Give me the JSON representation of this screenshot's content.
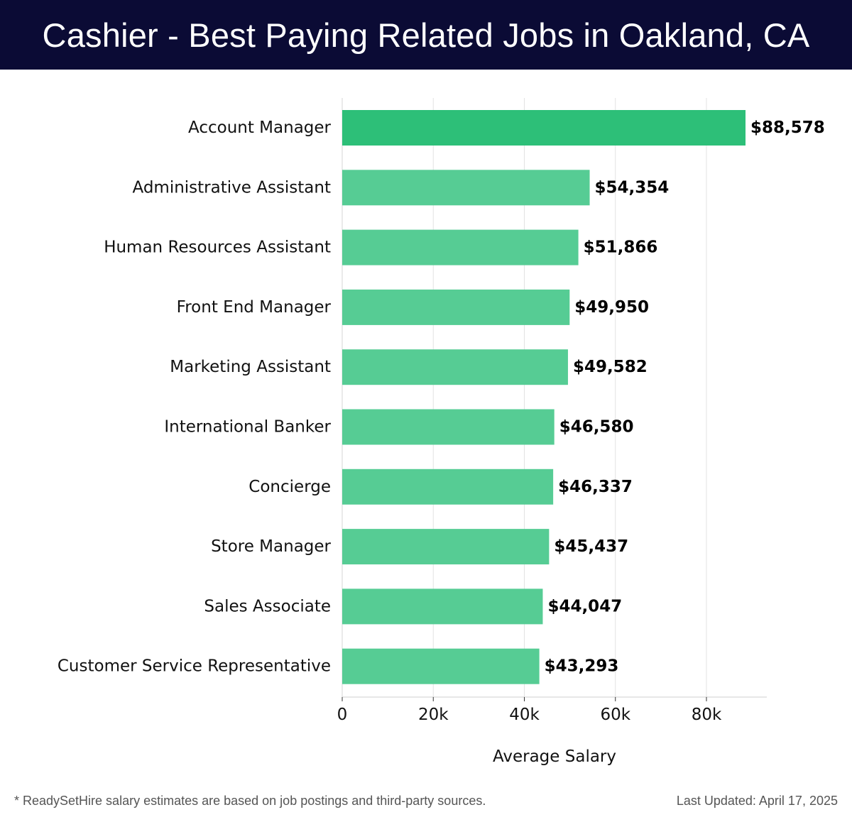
{
  "header": {
    "title": "Cashier - Best Paying Related Jobs in Oakland, CA"
  },
  "chart_data": {
    "type": "bar",
    "orientation": "horizontal",
    "categories": [
      "Account Manager",
      "Administrative Assistant",
      "Human Resources Assistant",
      "Front End Manager",
      "Marketing Assistant",
      "International Banker",
      "Concierge",
      "Store Manager",
      "Sales Associate",
      "Customer Service Representative"
    ],
    "values": [
      88578,
      54354,
      51866,
      49950,
      49582,
      46580,
      46337,
      45437,
      44047,
      43293
    ],
    "value_labels": [
      "$88,578",
      "$54,354",
      "$51,866",
      "$49,950",
      "$49,582",
      "$46,580",
      "$46,337",
      "$45,437",
      "$44,047",
      "$43,293"
    ],
    "xlabel": "Average Salary",
    "xticks": [
      0,
      20000,
      40000,
      60000,
      80000
    ],
    "xtick_labels": [
      "0",
      "20k",
      "40k",
      "60k",
      "80k"
    ],
    "xlim": [
      0,
      93000
    ],
    "grid": true,
    "colors": {
      "highlight": "#2dbf78",
      "bar": "#56cc94"
    }
  },
  "footer": {
    "note": "* ReadySetHire salary estimates are based on job postings and third-party sources.",
    "updated": "Last Updated: April 17, 2025"
  }
}
